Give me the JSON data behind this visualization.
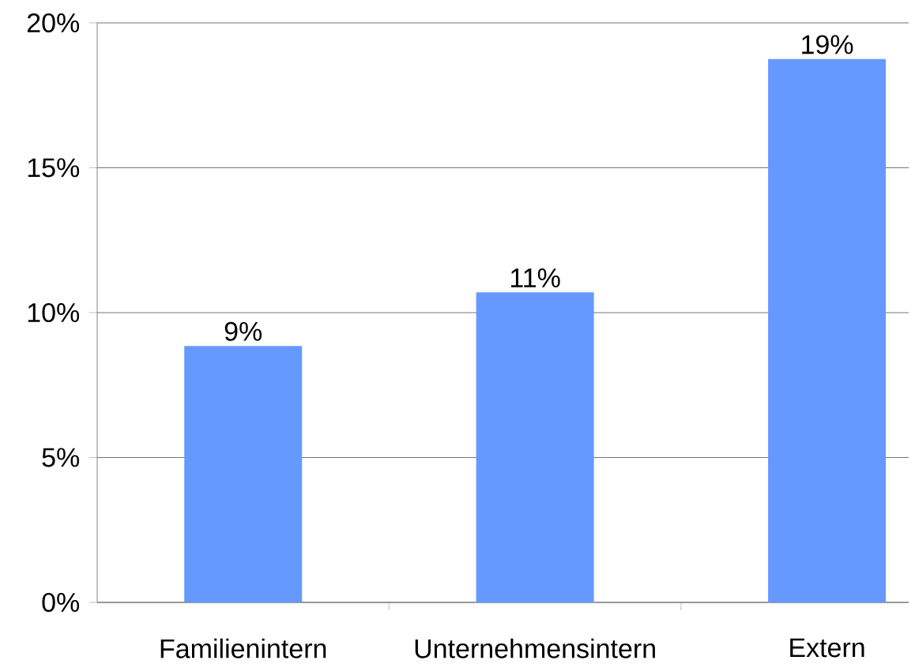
{
  "chart_data": {
    "type": "bar",
    "categories": [
      "Familienintern",
      "Unternehmensintern",
      "Extern"
    ],
    "values": [
      8.85,
      10.7,
      18.75
    ],
    "value_labels": [
      "9%",
      "11%",
      "19%"
    ],
    "color": "#6699ff",
    "ylim": [
      0,
      20
    ],
    "yticks": [
      {
        "value": 0,
        "label": "0%"
      },
      {
        "value": 5,
        "label": "5%"
      },
      {
        "value": 10,
        "label": "10%"
      },
      {
        "value": 15,
        "label": "15%"
      },
      {
        "value": 20,
        "label": "20%"
      }
    ],
    "grid": "y"
  }
}
